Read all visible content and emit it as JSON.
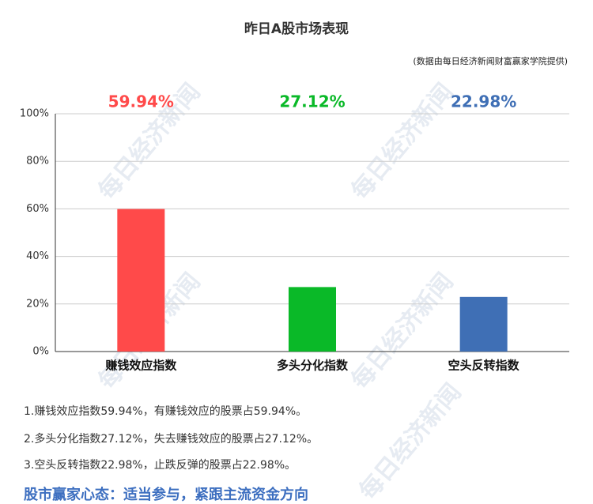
{
  "chart_data": {
    "type": "bar",
    "title": "昨日A股市场表现",
    "subtitle": "(数据由每日经济新闻财富赢家学院提供)",
    "watermark": "每日经济新闻",
    "categories": [
      "赚钱效应指数",
      "多头分化指数",
      "空头反转指数"
    ],
    "values": [
      59.94,
      27.12,
      22.98
    ],
    "value_labels": [
      "59.94%",
      "27.12%",
      "22.98%"
    ],
    "colors": [
      "#ff4a4a",
      "#0ab928",
      "#3f6fb5"
    ],
    "ylim": [
      0,
      100
    ],
    "yticks": [
      {
        "value": 0,
        "label": "0%"
      },
      {
        "value": 20,
        "label": "20%"
      },
      {
        "value": 40,
        "label": "40%"
      },
      {
        "value": 60,
        "label": "60%"
      },
      {
        "value": 80,
        "label": "80%"
      },
      {
        "value": 100,
        "label": "100%"
      }
    ],
    "grid": true
  },
  "notes": [
    "1.赚钱效应指数59.94%，有赚钱效应的股票占59.94%。",
    "2.多头分化指数27.12%，失去赚钱效应的股票占27.12%。",
    "3.空头反转指数22.98%，止跌反弹的股票占22.98%。"
  ],
  "slogan": "股市赢家心态：适当参与，紧跟主流资金方向"
}
